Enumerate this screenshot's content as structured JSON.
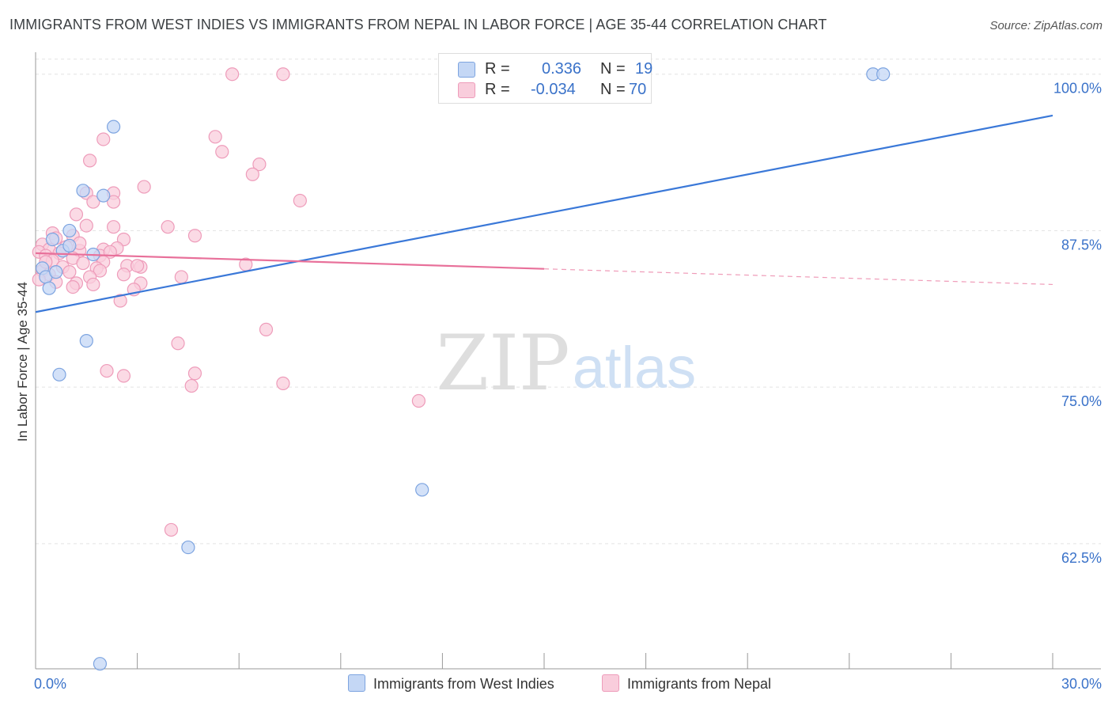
{
  "title": "IMMIGRANTS FROM WEST INDIES VS IMMIGRANTS FROM NEPAL IN LABOR FORCE | AGE 35-44 CORRELATION CHART",
  "source": "Source: ZipAtlas.com",
  "watermark": {
    "zip": "ZIP",
    "atlas": "atlas"
  },
  "legend": {
    "rows": [
      {
        "r_label": "R =",
        "r_value": "0.336",
        "n_label": "N =",
        "n_value": "19"
      },
      {
        "r_label": "R =",
        "r_value": "-0.034",
        "n_label": "N =",
        "n_value": "70"
      }
    ]
  },
  "colors": {
    "blue": "#3a78d8",
    "blue_fill": "#c4d7f5",
    "blue_edge": "#7da4e0",
    "pink": "#e8709a",
    "pink_fill": "#f9cddc",
    "pink_edge": "#ee9cba",
    "axis_text": "#3a72c9",
    "grid": "#e3e3e3"
  },
  "chart_data": {
    "type": "scatter",
    "title": "IMMIGRANTS FROM WEST INDIES VS IMMIGRANTS FROM NEPAL IN LABOR FORCE | AGE 35-44 CORRELATION CHART",
    "xlabel": "",
    "ylabel": "In Labor Force | Age 35-44",
    "xlim": [
      0,
      30
    ],
    "ylim": [
      52.5,
      101.5
    ],
    "x_tick_labels": [
      "0.0%",
      "30.0%"
    ],
    "y_ticks": [
      62.5,
      75.0,
      87.5,
      100.0
    ],
    "y_tick_labels": [
      "62.5%",
      "75.0%",
      "87.5%",
      "100.0%"
    ],
    "series": [
      {
        "name": "Immigrants from West Indies",
        "color": "#3a78d8",
        "r": 0.336,
        "n": 19,
        "trend": {
          "x": [
            0,
            30
          ],
          "y": [
            81.0,
            96.7
          ],
          "dashed_from": null
        },
        "points": [
          [
            0.2,
            84.5
          ],
          [
            0.3,
            83.8
          ],
          [
            0.4,
            82.9
          ],
          [
            0.5,
            86.8
          ],
          [
            0.6,
            84.2
          ],
          [
            0.8,
            85.9
          ],
          [
            1.0,
            86.3
          ],
          [
            1.0,
            87.5
          ],
          [
            1.7,
            85.6
          ],
          [
            1.4,
            90.7
          ],
          [
            2.0,
            90.3
          ],
          [
            1.5,
            78.7
          ],
          [
            0.7,
            76.0
          ],
          [
            2.3,
            95.8
          ],
          [
            4.5,
            62.2
          ],
          [
            1.9,
            52.9
          ],
          [
            11.4,
            66.8
          ],
          [
            24.7,
            100.0
          ],
          [
            25.0,
            100.0
          ]
        ]
      },
      {
        "name": "Immigrants from Nepal",
        "color": "#e8709a",
        "r": -0.034,
        "n": 70,
        "trend": {
          "x": [
            0,
            30
          ],
          "y": [
            85.7,
            83.2
          ],
          "dashed_from": 15
        },
        "points": [
          [
            5.8,
            100.0
          ],
          [
            7.3,
            100.0
          ],
          [
            2.0,
            94.8
          ],
          [
            5.3,
            95.0
          ],
          [
            5.5,
            93.8
          ],
          [
            1.6,
            93.1
          ],
          [
            6.6,
            92.8
          ],
          [
            6.4,
            92.0
          ],
          [
            3.2,
            91.0
          ],
          [
            1.5,
            90.5
          ],
          [
            2.3,
            90.5
          ],
          [
            1.7,
            89.8
          ],
          [
            2.3,
            89.8
          ],
          [
            7.8,
            89.9
          ],
          [
            1.2,
            88.8
          ],
          [
            1.5,
            87.9
          ],
          [
            2.3,
            87.8
          ],
          [
            3.9,
            87.8
          ],
          [
            4.7,
            87.1
          ],
          [
            0.5,
            87.3
          ],
          [
            0.6,
            86.9
          ],
          [
            1.1,
            87.1
          ],
          [
            2.6,
            86.8
          ],
          [
            0.2,
            86.4
          ],
          [
            0.4,
            86.0
          ],
          [
            0.9,
            86.2
          ],
          [
            1.3,
            85.9
          ],
          [
            2.0,
            86.0
          ],
          [
            2.4,
            86.1
          ],
          [
            0.1,
            85.8
          ],
          [
            0.3,
            85.5
          ],
          [
            0.7,
            85.7
          ],
          [
            1.1,
            85.3
          ],
          [
            1.9,
            85.5
          ],
          [
            2.2,
            85.8
          ],
          [
            0.5,
            85.1
          ],
          [
            1.4,
            84.9
          ],
          [
            2.0,
            85.0
          ],
          [
            6.2,
            84.8
          ],
          [
            0.8,
            84.6
          ],
          [
            1.8,
            84.5
          ],
          [
            2.7,
            84.7
          ],
          [
            3.1,
            84.6
          ],
          [
            0.2,
            84.3
          ],
          [
            0.4,
            84.0
          ],
          [
            1.9,
            84.3
          ],
          [
            2.6,
            84.0
          ],
          [
            1.2,
            83.3
          ],
          [
            1.6,
            83.8
          ],
          [
            1.7,
            83.2
          ],
          [
            4.3,
            83.8
          ],
          [
            3.1,
            83.3
          ],
          [
            0.1,
            83.6
          ],
          [
            1.1,
            83.0
          ],
          [
            2.9,
            82.8
          ],
          [
            2.5,
            81.9
          ],
          [
            6.8,
            79.6
          ],
          [
            4.2,
            78.5
          ],
          [
            2.1,
            76.3
          ],
          [
            2.6,
            75.9
          ],
          [
            4.7,
            76.1
          ],
          [
            4.6,
            75.1
          ],
          [
            7.3,
            75.3
          ],
          [
            11.3,
            73.9
          ],
          [
            4.0,
            63.6
          ],
          [
            0.3,
            85.0
          ],
          [
            1.0,
            84.2
          ],
          [
            0.6,
            83.4
          ],
          [
            3.0,
            84.7
          ],
          [
            1.3,
            86.5
          ]
        ]
      }
    ],
    "legend_position": "top-center"
  }
}
